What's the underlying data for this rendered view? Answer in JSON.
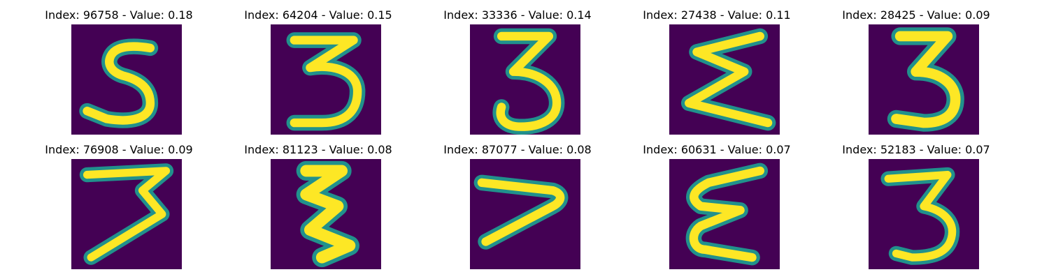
{
  "figure": {
    "background_color": "#440154",
    "stroke_edge_color": "#21918c",
    "stroke_core_color": "#fde725",
    "panels": [
      {
        "title": "Index: 96758 - Value: 0.18",
        "digit": "5"
      },
      {
        "title": "Index: 64204 - Value: 0.15",
        "digit": "3"
      },
      {
        "title": "Index: 33336 - Value: 0.14",
        "digit": "3"
      },
      {
        "title": "Index: 27438 - Value: 0.11",
        "digit": "Σ-like 3"
      },
      {
        "title": "Index: 28425 - Value: 0.09",
        "digit": "3"
      },
      {
        "title": "Index: 76908 - Value: 0.09",
        "digit": "3"
      },
      {
        "title": "Index: 81123 - Value: 0.08",
        "digit": "3"
      },
      {
        "title": "Index: 87077 - Value: 0.08",
        "digit": "7"
      },
      {
        "title": "Index: 60631 - Value: 0.07",
        "digit": "3"
      },
      {
        "title": "Index: 52183 - Value: 0.07",
        "digit": "3"
      }
    ]
  }
}
